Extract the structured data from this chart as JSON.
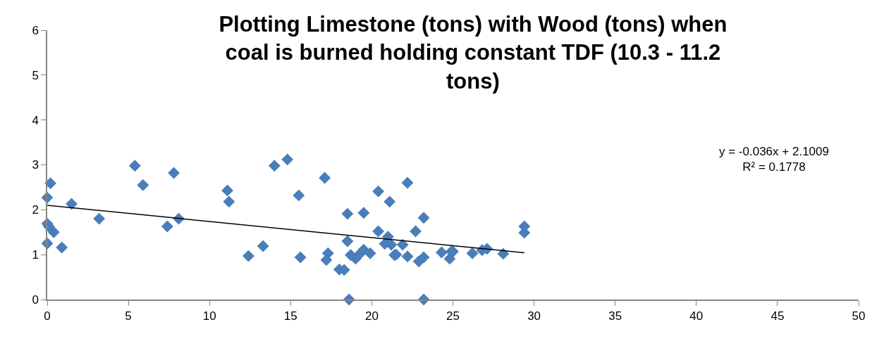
{
  "chart_data": {
    "type": "scatter",
    "title": "Plotting Limestone (tons) with Wood (tons) when coal is burned holding constant TDF (10.3 - 11.2 tons)",
    "xlim": [
      0,
      50
    ],
    "xticks": [
      0,
      5,
      10,
      15,
      20,
      25,
      30,
      35,
      40,
      45,
      50
    ],
    "ylim": [
      0,
      6
    ],
    "yticks": [
      0,
      1,
      2,
      3,
      4,
      5,
      6
    ],
    "legend": false,
    "marker": "diamond",
    "annotations": [
      "y = -0.036x + 2.1009\nR² = 0.1778"
    ],
    "series": [
      {
        "color": "#4a7ebb",
        "x": [
          0,
          0.2,
          0,
          0.1,
          0.4,
          0,
          0.9,
          1.5,
          3.2,
          5.4,
          5.9,
          7.4,
          7.8,
          8.1,
          11.1,
          11.2,
          12.4,
          13.3,
          14.0,
          14.8,
          15.5,
          15.6,
          17.1,
          17.3,
          17.2,
          18.0,
          18.3,
          18.5,
          18.5,
          18.6,
          18.7,
          19.0,
          19.3,
          19.5,
          19.5,
          19.9,
          20.4,
          20.4,
          20.8,
          21.0,
          21.1,
          21.2,
          21.4,
          21.5,
          21.9,
          22.2,
          22.2,
          22.7,
          22.9,
          23.2,
          23.2,
          23.2,
          24.3,
          24.8,
          24.9,
          25.0,
          26.2,
          26.8,
          27.1,
          28.1,
          29.4,
          29.4
        ],
        "values": [
          2.27,
          2.59,
          1.69,
          1.63,
          1.5,
          1.25,
          1.16,
          2.13,
          1.8,
          2.98,
          2.55,
          1.63,
          2.82,
          1.8,
          2.43,
          2.18,
          0.97,
          1.19,
          2.98,
          3.12,
          2.32,
          0.94,
          2.71,
          1.03,
          0.88,
          0.67,
          0.66,
          1.91,
          1.3,
          0,
          0.99,
          0.91,
          1.03,
          1.11,
          1.93,
          1.03,
          2.41,
          1.52,
          1.24,
          1.4,
          2.18,
          1.22,
          0.99,
          1.0,
          1.22,
          2.6,
          0.96,
          1.52,
          0.85,
          1.82,
          0.94,
          0,
          1.05,
          0.91,
          1.07,
          1.07,
          1.03,
          1.1,
          1.13,
          1.02,
          1.63,
          1.49
        ]
      },
      {
        "type": "line",
        "color": "#000000",
        "marker": "none",
        "x": [
          0,
          29.4
        ],
        "values": [
          2.1,
          1.04
        ]
      }
    ]
  }
}
